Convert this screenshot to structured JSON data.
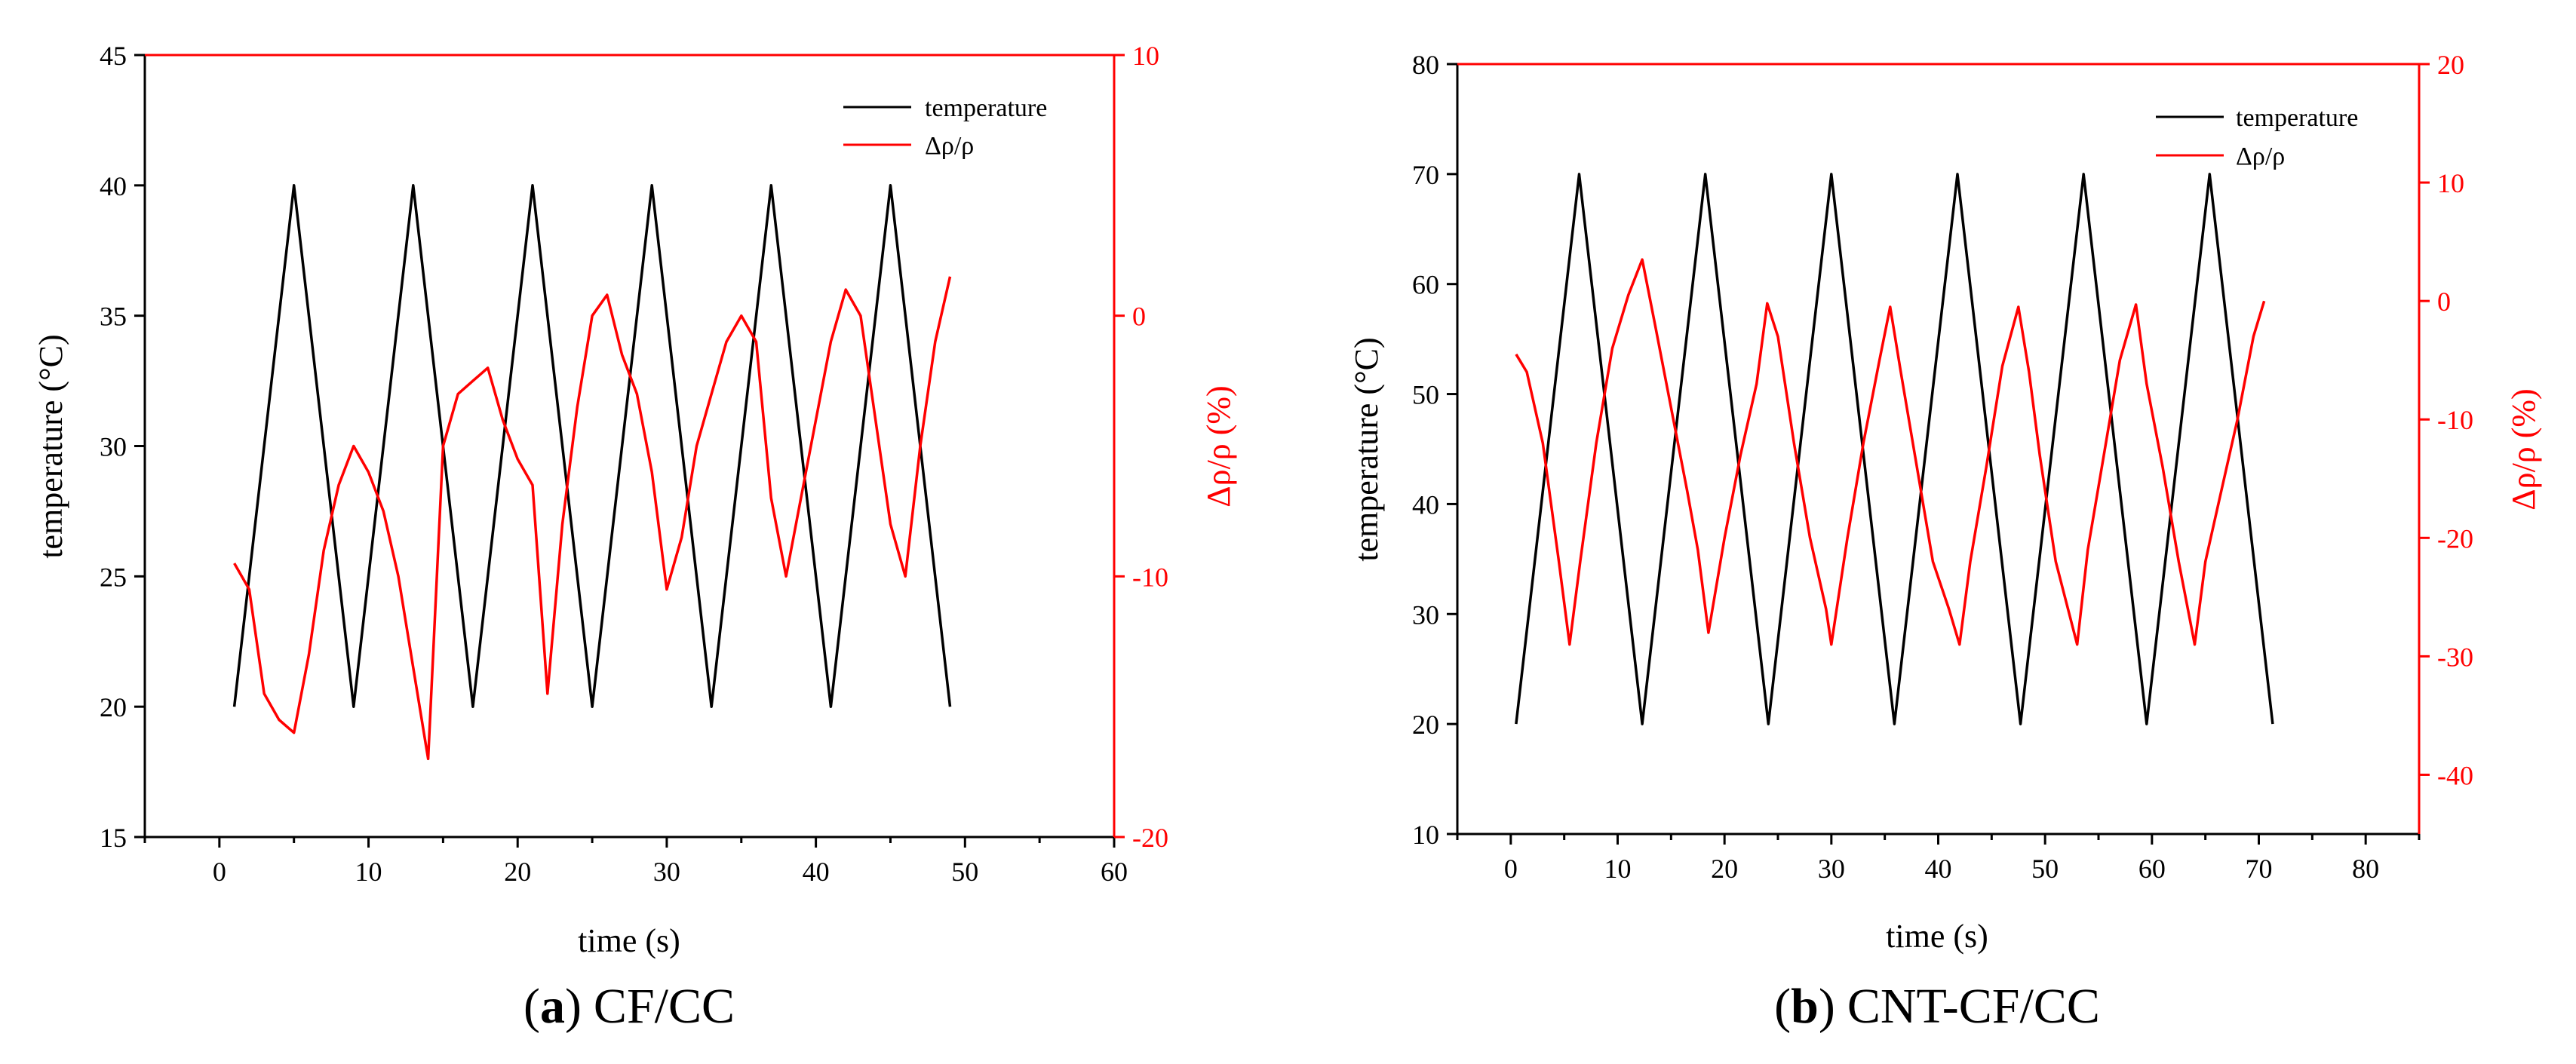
{
  "colors": {
    "temperature": "#000000",
    "resistivity": "#ff0000"
  },
  "chart_data": [
    {
      "type": "line",
      "caption": {
        "open": "(",
        "letter": "a",
        "close": ")",
        "text": "CF/CC"
      },
      "xlabel": "time (s)",
      "ylabel": "temperature (°C)",
      "y2label": "Δρ/ρ (%)",
      "xlim": [
        -5,
        60
      ],
      "ylim": [
        15,
        45
      ],
      "y2lim": [
        -20,
        10
      ],
      "xticks": [
        0,
        10,
        20,
        30,
        40,
        50,
        60
      ],
      "yticks": [
        15,
        20,
        25,
        30,
        35,
        40,
        45
      ],
      "y2ticks": [
        -20,
        -10,
        0,
        10
      ],
      "legend": [
        "temperature",
        "Δρ/ρ"
      ],
      "series": [
        {
          "name": "temperature",
          "axis": "left",
          "x": [
            1,
            5,
            9,
            13,
            17,
            21,
            25,
            29,
            33,
            37,
            41,
            45,
            49
          ],
          "y": [
            20,
            40,
            20,
            40,
            20,
            40,
            20,
            40,
            20,
            40,
            20,
            40,
            20
          ]
        },
        {
          "name": "Δρ/ρ",
          "axis": "right",
          "x": [
            1,
            2,
            3,
            4,
            5,
            6,
            7,
            8,
            9,
            10,
            11,
            12,
            13,
            14,
            15,
            16,
            17,
            18,
            19,
            20,
            21,
            22,
            23,
            24,
            25,
            26,
            27,
            28,
            29,
            30,
            31,
            32,
            33,
            34,
            35,
            36,
            37,
            38,
            39,
            40,
            41,
            42,
            43,
            44,
            45,
            46,
            47,
            48,
            49
          ],
          "y": [
            -9.5,
            -10.5,
            -14.5,
            -15.5,
            -16,
            -13,
            -9,
            -6.5,
            -5,
            -6,
            -7.5,
            -10,
            -13.5,
            -17,
            -5,
            -3,
            -2.5,
            -2,
            -4,
            -5.5,
            -6.5,
            -14.5,
            -8,
            -3.5,
            0,
            0.8,
            -1.5,
            -3,
            -6,
            -10.5,
            -8.5,
            -5,
            -3,
            -1,
            0,
            -1,
            -7,
            -10,
            -7,
            -4,
            -1,
            1,
            0,
            -4,
            -8,
            -10,
            -5,
            -1,
            1.5
          ]
        }
      ]
    },
    {
      "type": "line",
      "caption": {
        "open": "(",
        "letter": "b",
        "close": ")",
        "text": "CNT-CF/CC"
      },
      "xlabel": "time (s)",
      "ylabel": "temperature (°C)",
      "y2label": "Δρ/ρ (%)",
      "xlim": [
        -5,
        85
      ],
      "ylim": [
        10,
        80
      ],
      "y2lim": [
        -45,
        20
      ],
      "xticks": [
        0,
        10,
        20,
        30,
        40,
        50,
        60,
        70,
        80
      ],
      "yticks": [
        10,
        20,
        30,
        40,
        50,
        60,
        70,
        80
      ],
      "y2ticks": [
        -40,
        -30,
        -20,
        -10,
        0,
        10,
        20
      ],
      "legend": [
        "temperature",
        "Δρ/ρ"
      ],
      "series": [
        {
          "name": "temperature",
          "axis": "left",
          "x": [
            0.5,
            6.4,
            12.3,
            18.2,
            24.1,
            30,
            35.9,
            41.8,
            47.7,
            53.6,
            59.5,
            65.4,
            71.3
          ],
          "y": [
            20,
            70,
            20,
            70,
            20,
            70,
            20,
            70,
            20,
            70,
            20,
            70,
            20
          ]
        },
        {
          "name": "Δρ/ρ",
          "axis": "right",
          "x": [
            0.5,
            1.5,
            3,
            4.5,
            5.5,
            6.5,
            8,
            9.5,
            11,
            12.3,
            13.5,
            15,
            16.5,
            17.5,
            18.5,
            20,
            21.5,
            23,
            24,
            25,
            26.5,
            28,
            29.5,
            30,
            31.5,
            33,
            34.5,
            35.5,
            36.5,
            38,
            39.5,
            41,
            42,
            43,
            44.5,
            46,
            47.5,
            48.5,
            49.5,
            51,
            53,
            54,
            55.5,
            57,
            58.5,
            59.5,
            61,
            62.5,
            64,
            65,
            66.5,
            68,
            69.5,
            70.5
          ],
          "y": [
            -4.5,
            -6,
            -12,
            -22,
            -29,
            -22,
            -12,
            -4,
            0.5,
            3.5,
            -2,
            -9,
            -16,
            -21,
            -28,
            -20,
            -13,
            -7,
            -0.2,
            -3,
            -12,
            -20,
            -26,
            -29,
            -20,
            -12,
            -5,
            -0.5,
            -6,
            -14,
            -22,
            -26,
            -29,
            -22,
            -14,
            -5.5,
            -0.5,
            -6,
            -13,
            -22,
            -29,
            -21,
            -13,
            -5,
            -0.3,
            -7,
            -14,
            -22,
            -29,
            -22,
            -16,
            -10,
            -3,
            0
          ]
        }
      ]
    }
  ]
}
